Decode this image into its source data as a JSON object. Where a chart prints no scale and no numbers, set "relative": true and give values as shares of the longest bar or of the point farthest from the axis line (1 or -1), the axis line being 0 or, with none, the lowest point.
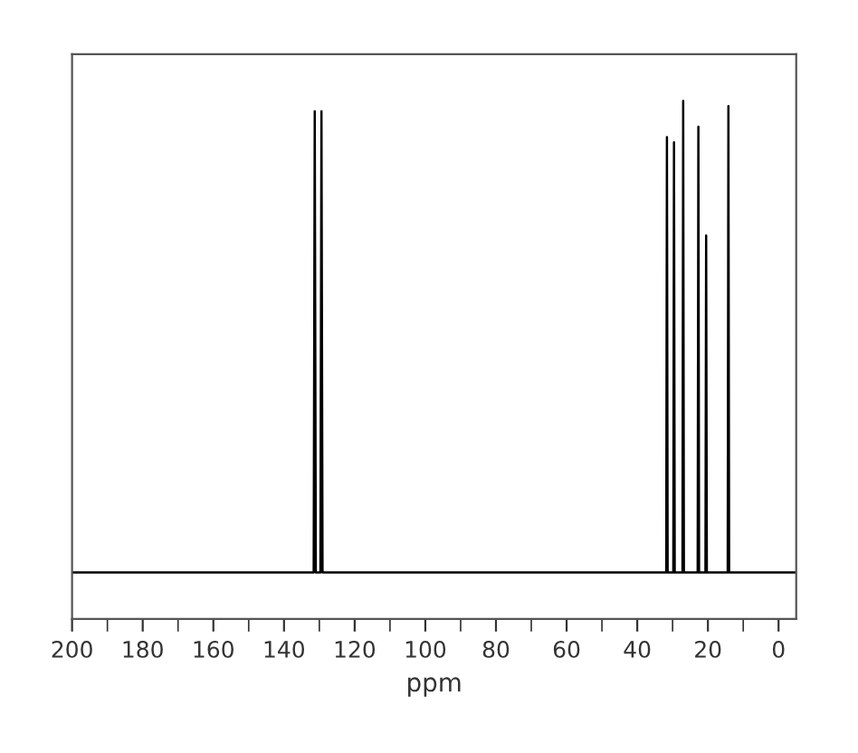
{
  "chart_data": {
    "type": "line",
    "relative": true,
    "xlabel": "ppm",
    "xlim": [
      200,
      -5
    ],
    "xticks": [
      200,
      {
        "value": 190,
        "label": null
      },
      180,
      {
        "value": 170,
        "label": null
      },
      160,
      {
        "value": 150,
        "label": null
      },
      140,
      {
        "value": 130,
        "label": null
      },
      120,
      {
        "value": 110,
        "label": null
      },
      100,
      {
        "value": 90,
        "label": null
      },
      80,
      {
        "value": 70,
        "label": null
      },
      60,
      {
        "value": 50,
        "label": null
      },
      40,
      {
        "value": 30,
        "label": null
      },
      20,
      {
        "value": 10,
        "label": null
      },
      0
    ],
    "tick_labels": "x",
    "marker": "none",
    "line_style": "solid",
    "series": [
      {
        "color": "#000000",
        "x": [
          200,
          131.6,
          131.3,
          131.0,
          129.7,
          129.4,
          129.1,
          31.8,
          31.6,
          31.4,
          29.8,
          29.6,
          29.4,
          27.2,
          27.0,
          26.8,
          22.9,
          22.7,
          22.5,
          20.7,
          20.5,
          20.3,
          14.4,
          14.2,
          14.0,
          -5
        ],
        "values": [
          0.09,
          0.09,
          0.98,
          0.09,
          0.09,
          0.98,
          0.09,
          0.09,
          0.93,
          0.09,
          0.09,
          0.92,
          0.09,
          0.09,
          1,
          0.09,
          0.09,
          0.95,
          0.09,
          0.09,
          0.74,
          0.09,
          0.09,
          0.99,
          0.09,
          0.09
        ]
      }
    ]
  }
}
